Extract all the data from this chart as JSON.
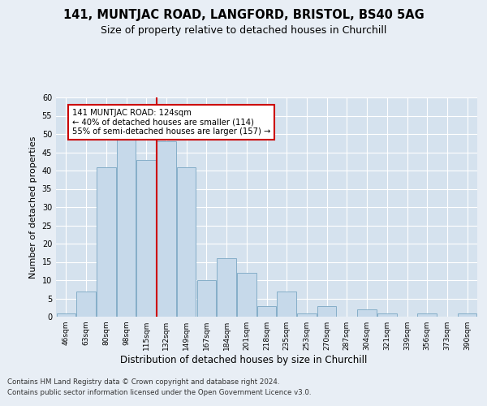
{
  "title": "141, MUNTJAC ROAD, LANGFORD, BRISTOL, BS40 5AG",
  "subtitle": "Size of property relative to detached houses in Churchill",
  "xlabel_bottom": "Distribution of detached houses by size in Churchill",
  "ylabel": "Number of detached properties",
  "footer1": "Contains HM Land Registry data © Crown copyright and database right 2024.",
  "footer2": "Contains public sector information licensed under the Open Government Licence v3.0.",
  "bin_labels": [
    "46sqm",
    "63sqm",
    "80sqm",
    "98sqm",
    "115sqm",
    "132sqm",
    "149sqm",
    "167sqm",
    "184sqm",
    "201sqm",
    "218sqm",
    "235sqm",
    "253sqm",
    "270sqm",
    "287sqm",
    "304sqm",
    "321sqm",
    "339sqm",
    "356sqm",
    "373sqm",
    "390sqm"
  ],
  "bar_heights": [
    1,
    7,
    41,
    49,
    43,
    48,
    41,
    10,
    16,
    12,
    3,
    7,
    1,
    3,
    0,
    2,
    1,
    0,
    1,
    0,
    1
  ],
  "bar_color": "#c6d9ea",
  "bar_edge_color": "#85aec8",
  "vline_x": 4,
  "vline_color": "#cc0000",
  "annotation_text": "141 MUNTJAC ROAD: 124sqm\n← 40% of detached houses are smaller (114)\n55% of semi-detached houses are larger (157) →",
  "annotation_box_color": "white",
  "annotation_box_edge": "#cc0000",
  "ylim": [
    0,
    60
  ],
  "yticks": [
    0,
    5,
    10,
    15,
    20,
    25,
    30,
    35,
    40,
    45,
    50,
    55,
    60
  ],
  "background_color": "#e8eef5",
  "plot_bg_color": "#d5e2ee",
  "grid_color": "white",
  "figsize": [
    6.0,
    5.0
  ],
  "dpi": 100
}
